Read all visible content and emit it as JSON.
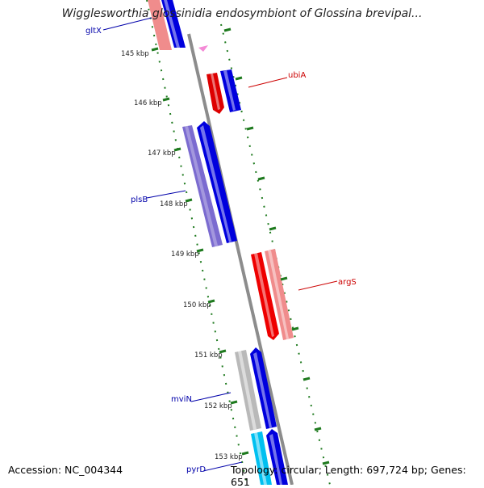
{
  "title": "Wigglesworthia glossinidia endosymbiont of Glossina brevipal...",
  "footer": {
    "accession": "Accession: NC_004344",
    "summary": "Topology: circular; Length: 697,724 bp; Genes: 651"
  },
  "colors": {
    "backbone": "#8c8c8c",
    "tick": "#1e7a1e",
    "label_red": "#cc0000",
    "label_blue": "#0000aa"
  },
  "ticks": [
    {
      "kbp": 145,
      "label": "145 kbp"
    },
    {
      "kbp": 146,
      "label": "146 kbp"
    },
    {
      "kbp": 147,
      "label": "147 kbp"
    },
    {
      "kbp": 148,
      "label": "148 kbp"
    },
    {
      "kbp": 149,
      "label": "149 kbp"
    },
    {
      "kbp": 150,
      "label": "150 kbp"
    },
    {
      "kbp": 151,
      "label": "151 kbp"
    },
    {
      "kbp": 152,
      "label": "152 kbp"
    },
    {
      "kbp": 153,
      "label": "153 kbp"
    }
  ],
  "genes": [
    {
      "name": "gltX",
      "color": "label_blue"
    },
    {
      "name": "ubiA",
      "color": "label_red"
    },
    {
      "name": "plsB",
      "color": "label_blue"
    },
    {
      "name": "argS",
      "color": "label_red"
    },
    {
      "name": "mviN",
      "color": "label_blue"
    },
    {
      "name": "pyrD",
      "color": "label_blue"
    }
  ]
}
